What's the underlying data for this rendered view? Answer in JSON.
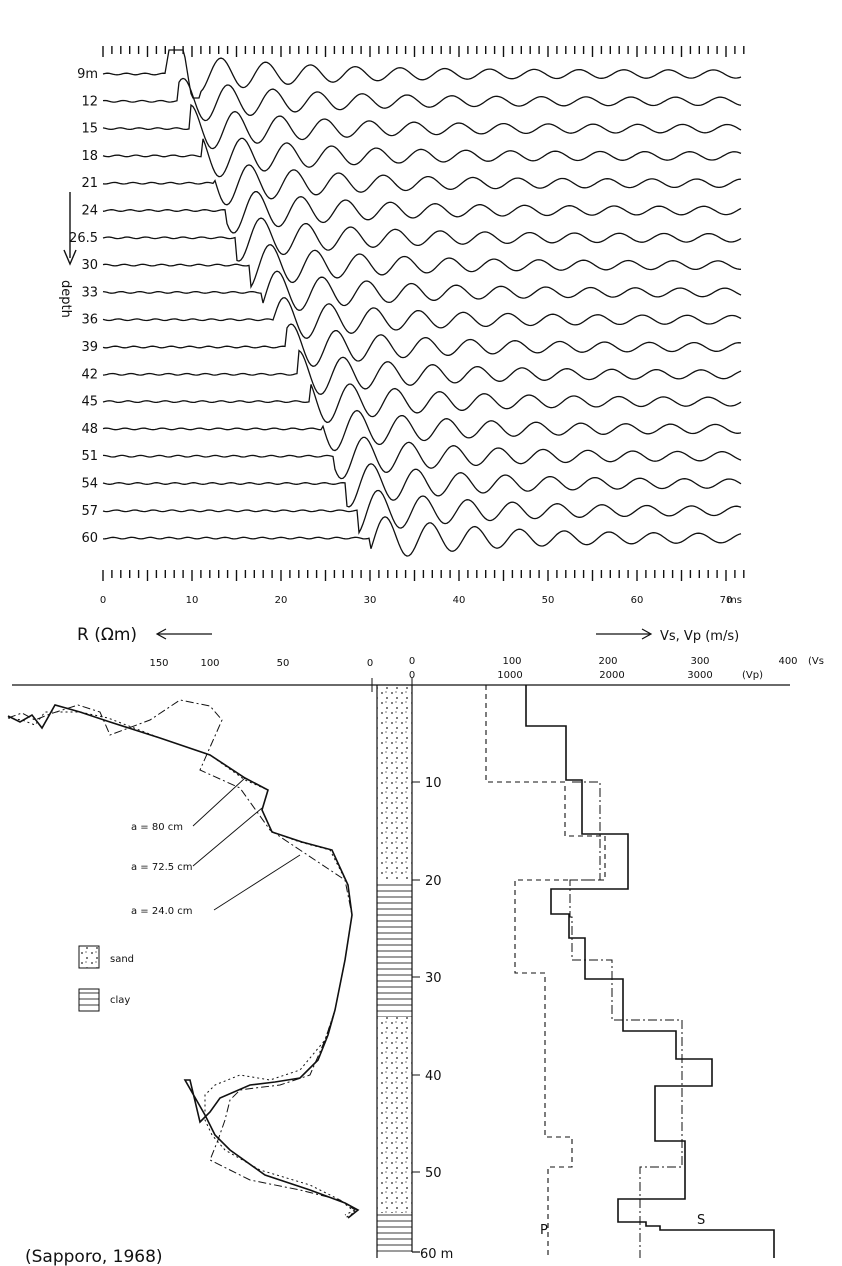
{
  "seismogram": {
    "depth_labels": [
      "9m",
      "12",
      "15",
      "18",
      "21",
      "24",
      "26.5",
      "30",
      "33",
      "36",
      "39",
      "42",
      "45",
      "48",
      "51",
      "54",
      "57",
      "60"
    ],
    "depth_axis_label": "depth",
    "time_tick_labels": [
      "0",
      "10",
      "20",
      "30",
      "40",
      "50",
      "60",
      "70"
    ],
    "time_unit": "ms"
  },
  "log": {
    "resistivity_label": "R (Ωm)",
    "velocity_label": "Vs, Vp (m/s)",
    "r_ticks": [
      "150",
      "100",
      "50",
      "0"
    ],
    "column_top_ticks": [
      "0",
      "0"
    ],
    "vs_ticks": [
      "100",
      "200",
      "300",
      "400"
    ],
    "vs_tag": "(Vs",
    "vp_ticks": [
      "1000",
      "2000",
      "3000"
    ],
    "vp_tag": "(Vp)",
    "depth_ticks": [
      "10",
      "20",
      "30",
      "40",
      "50"
    ],
    "depth_end_label": "60 m",
    "electrode_labels": [
      "a = 80 cm",
      "a = 72.5 cm",
      "a = 24.0 cm"
    ],
    "legend": [
      "sand",
      "clay"
    ],
    "curve_labels": [
      "P",
      "S"
    ],
    "caption": "(Sapporo, 1968)"
  }
}
